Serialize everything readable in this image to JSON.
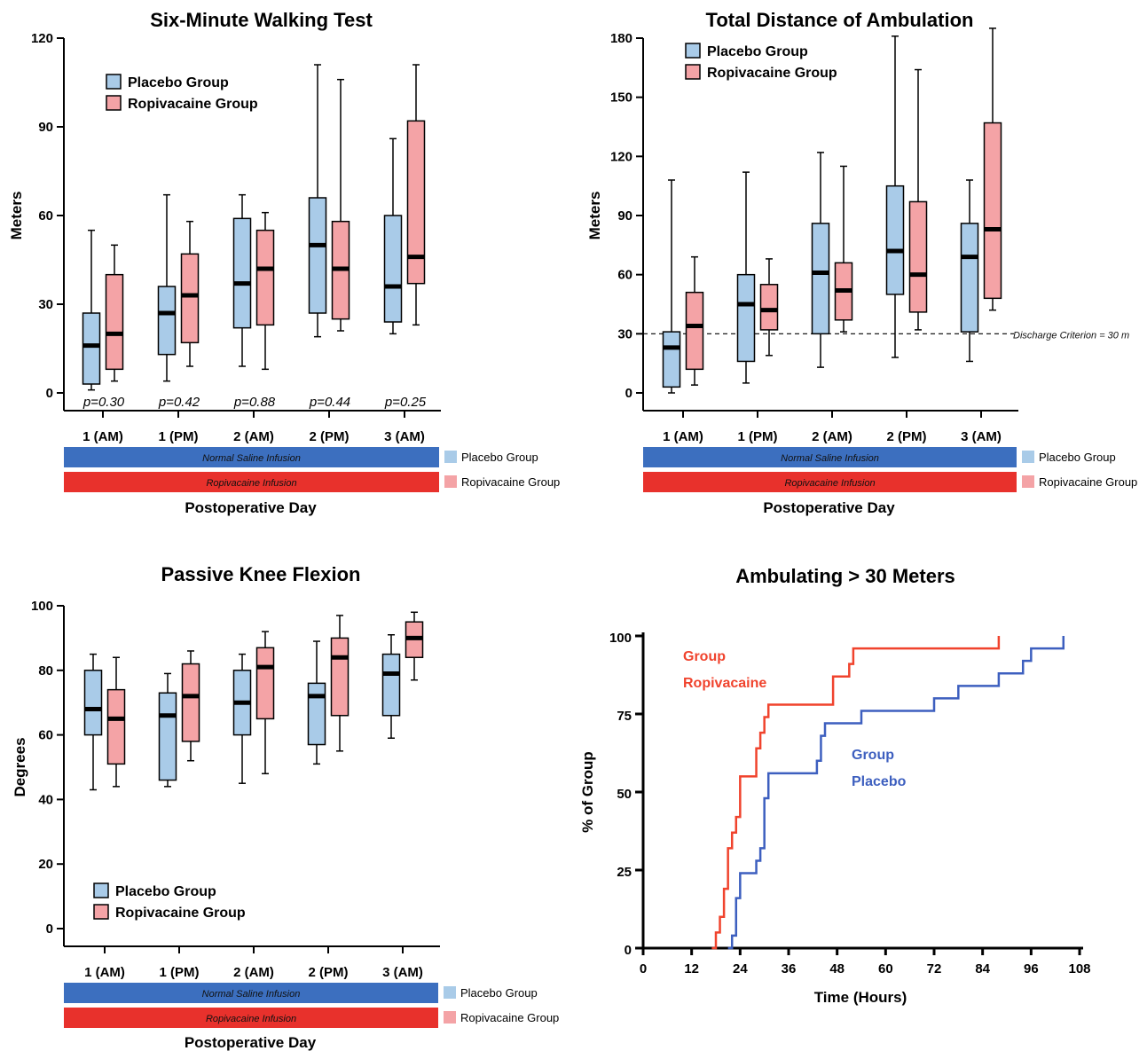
{
  "colors": {
    "placebo_fill": "#a9cbe8",
    "ropivacaine_fill": "#f4a3a6",
    "saline_bar": "#3c6fbf",
    "ropivacaine_bar": "#e8312c",
    "placebo_line": "#3d5fbf",
    "ropivacaine_line": "#f0432d",
    "median": "#000000"
  },
  "legend": {
    "placebo": "Placebo Group",
    "ropivacaine": "Ropivacaine Group"
  },
  "infusion_bars": {
    "saline": "Normal Saline Infusion",
    "ropivacaine": "Ropivacaine Infusion",
    "placebo_key": "Placebo Group",
    "ropivacaine_key": "Ropivacaine Group"
  },
  "chart_data": [
    {
      "type": "boxplot",
      "title": "Six-Minute Walking Test",
      "ylabel": "Meters",
      "xlabel": "Postoperative Day",
      "ylim": [
        0,
        120
      ],
      "yticks": [
        0,
        30,
        60,
        90,
        120
      ],
      "categories": [
        "1 (AM)",
        "1 (PM)",
        "2 (AM)",
        "2 (PM)",
        "3 (AM)"
      ],
      "p_values": [
        "p=0.30",
        "p=0.42",
        "p=0.88",
        "p=0.44",
        "p=0.25"
      ],
      "series": [
        {
          "name": "Placebo Group",
          "boxes": [
            {
              "min": 1,
              "q1": 3,
              "median": 16,
              "q3": 27,
              "max": 55
            },
            {
              "min": 4,
              "q1": 13,
              "median": 27,
              "q3": 36,
              "max": 67
            },
            {
              "min": 9,
              "q1": 22,
              "median": 37,
              "q3": 59,
              "max": 67
            },
            {
              "min": 19,
              "q1": 27,
              "median": 50,
              "q3": 66,
              "max": 111
            },
            {
              "min": 20,
              "q1": 24,
              "median": 36,
              "q3": 60,
              "max": 86
            }
          ]
        },
        {
          "name": "Ropivacaine Group",
          "boxes": [
            {
              "min": 4,
              "q1": 8,
              "median": 20,
              "q3": 40,
              "max": 50
            },
            {
              "min": 9,
              "q1": 17,
              "median": 33,
              "q3": 47,
              "max": 58
            },
            {
              "min": 8,
              "q1": 23,
              "median": 42,
              "q3": 55,
              "max": 61
            },
            {
              "min": 21,
              "q1": 25,
              "median": 42,
              "q3": 58,
              "max": 106
            },
            {
              "min": 23,
              "q1": 37,
              "median": 46,
              "q3": 92,
              "max": 111
            }
          ]
        }
      ]
    },
    {
      "type": "boxplot",
      "title": "Total Distance of Ambulation",
      "ylabel": "Meters",
      "xlabel": "Postoperative Day",
      "ylim": [
        0,
        180
      ],
      "yticks": [
        0,
        30,
        60,
        90,
        120,
        150,
        180
      ],
      "categories": [
        "1 (AM)",
        "1 (PM)",
        "2 (AM)",
        "2 (PM)",
        "3 (AM)"
      ],
      "reference_line": {
        "y": 30,
        "label": "Discharge Criterion = 30 m"
      },
      "series": [
        {
          "name": "Placebo Group",
          "boxes": [
            {
              "min": 0,
              "q1": 3,
              "median": 23,
              "q3": 31,
              "max": 108
            },
            {
              "min": 5,
              "q1": 16,
              "median": 45,
              "q3": 60,
              "max": 112
            },
            {
              "min": 13,
              "q1": 30,
              "median": 61,
              "q3": 86,
              "max": 122
            },
            {
              "min": 18,
              "q1": 50,
              "median": 72,
              "q3": 105,
              "max": 181
            },
            {
              "min": 16,
              "q1": 31,
              "median": 69,
              "q3": 86,
              "max": 108
            }
          ]
        },
        {
          "name": "Ropivacaine Group",
          "boxes": [
            {
              "min": 4,
              "q1": 12,
              "median": 34,
              "q3": 51,
              "max": 69
            },
            {
              "min": 19,
              "q1": 32,
              "median": 42,
              "q3": 55,
              "max": 68
            },
            {
              "min": 31,
              "q1": 37,
              "median": 52,
              "q3": 66,
              "max": 115
            },
            {
              "min": 32,
              "q1": 41,
              "median": 60,
              "q3": 97,
              "max": 164
            },
            {
              "min": 42,
              "q1": 48,
              "median": 83,
              "q3": 137,
              "max": 185
            }
          ]
        }
      ]
    },
    {
      "type": "boxplot",
      "title": "Passive Knee Flexion",
      "ylabel": "Degrees",
      "xlabel": "Postoperative Day",
      "ylim": [
        0,
        100
      ],
      "yticks": [
        0,
        20,
        40,
        60,
        80,
        100
      ],
      "categories": [
        "1 (AM)",
        "1 (PM)",
        "2 (AM)",
        "2 (PM)",
        "3 (AM)"
      ],
      "series": [
        {
          "name": "Placebo Group",
          "boxes": [
            {
              "min": 43,
              "q1": 60,
              "median": 68,
              "q3": 80,
              "max": 85
            },
            {
              "min": 44,
              "q1": 46,
              "median": 66,
              "q3": 73,
              "max": 79
            },
            {
              "min": 45,
              "q1": 60,
              "median": 70,
              "q3": 80,
              "max": 85
            },
            {
              "min": 51,
              "q1": 57,
              "median": 72,
              "q3": 76,
              "max": 89
            },
            {
              "min": 59,
              "q1": 66,
              "median": 79,
              "q3": 85,
              "max": 91
            }
          ]
        },
        {
          "name": "Ropivacaine Group",
          "boxes": [
            {
              "min": 44,
              "q1": 51,
              "median": 65,
              "q3": 74,
              "max": 84
            },
            {
              "min": 52,
              "q1": 58,
              "median": 72,
              "q3": 82,
              "max": 86
            },
            {
              "min": 48,
              "q1": 65,
              "median": 81,
              "q3": 87,
              "max": 92
            },
            {
              "min": 55,
              "q1": 66,
              "median": 84,
              "q3": 90,
              "max": 97
            },
            {
              "min": 77,
              "q1": 84,
              "median": 90,
              "q3": 95,
              "max": 98
            }
          ]
        }
      ]
    },
    {
      "type": "line",
      "subtype": "step",
      "title": "Ambulating > 30 Meters",
      "xlabel": "Time (Hours)",
      "ylabel": "% of Group",
      "xlim": [
        0,
        108
      ],
      "ylim": [
        0,
        100
      ],
      "xticks": [
        0,
        12,
        24,
        36,
        48,
        60,
        72,
        84,
        96,
        108
      ],
      "yticks": [
        0,
        25,
        50,
        75,
        100
      ],
      "series": [
        {
          "name": "Group Ropivacaine",
          "label_lines": [
            "Group",
            "Ropivacaine"
          ],
          "x": [
            17,
            18,
            19,
            20,
            21,
            22,
            23,
            24,
            28,
            29,
            30,
            31,
            47,
            51,
            52,
            53,
            88
          ],
          "y": [
            0,
            5,
            10,
            19,
            32,
            37,
            42,
            55,
            64,
            69,
            74,
            78,
            87,
            91,
            96,
            96,
            100
          ]
        },
        {
          "name": "Group Placebo",
          "label_lines": [
            "Group",
            "Placebo"
          ],
          "x": [
            21,
            22,
            23,
            24,
            28,
            29,
            30,
            31,
            43,
            44,
            45,
            46,
            54,
            72,
            78,
            88,
            94,
            96,
            104
          ],
          "y": [
            0,
            4,
            16,
            24,
            28,
            32,
            48,
            56,
            60,
            68,
            72,
            72,
            76,
            80,
            84,
            88,
            92,
            96,
            100
          ]
        }
      ]
    }
  ]
}
